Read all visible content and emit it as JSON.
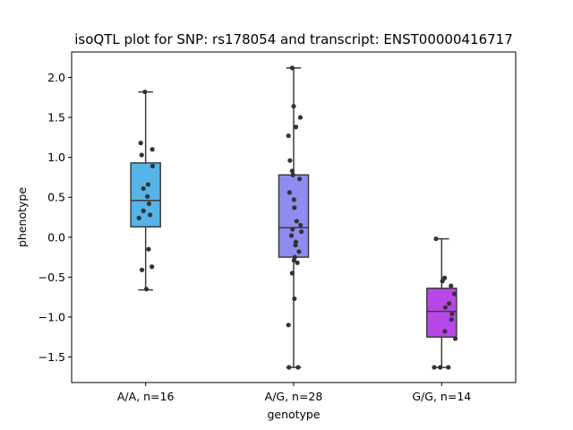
{
  "chart_data": {
    "type": "box",
    "title": "isoQTL plot for SNP: rs178054 and transcript: ENST00000416717",
    "xlabel": "genotype",
    "ylabel": "phenotype",
    "ylim": [
      -1.82,
      2.32
    ],
    "yticks": [
      2.0,
      1.5,
      1.0,
      0.5,
      0.0,
      -0.5,
      -1.0,
      -1.5
    ],
    "ytick_labels": [
      "2.0",
      "1.5",
      "1.0",
      "0.5",
      "0.0",
      "−0.5",
      "−1.0",
      "−1.5"
    ],
    "grid": false,
    "categories": [
      "A/A, n=16",
      "A/G, n=28",
      "G/G, n=14"
    ],
    "boxes": [
      {
        "category": "A/A, n=16",
        "color": "#56b4e9",
        "whisker_low": -0.66,
        "q1": 0.13,
        "median": 0.46,
        "q3": 0.93,
        "whisker_high": 1.82,
        "points": [
          {
            "offset": -0.05,
            "y": 1.82
          },
          {
            "offset": -0.33,
            "y": 1.18
          },
          {
            "offset": 0.45,
            "y": 1.1
          },
          {
            "offset": -0.27,
            "y": 1.03
          },
          {
            "offset": 0.47,
            "y": 0.89
          },
          {
            "offset": 0.17,
            "y": 0.66
          },
          {
            "offset": -0.15,
            "y": 0.61
          },
          {
            "offset": 0.12,
            "y": 0.51
          },
          {
            "offset": 0.23,
            "y": 0.42
          },
          {
            "offset": -0.15,
            "y": 0.33
          },
          {
            "offset": 0.3,
            "y": 0.28
          },
          {
            "offset": -0.45,
            "y": 0.24
          },
          {
            "offset": 0.2,
            "y": -0.15
          },
          {
            "offset": 0.42,
            "y": -0.37
          },
          {
            "offset": -0.25,
            "y": -0.41
          },
          {
            "offset": 0.05,
            "y": -0.65
          }
        ]
      },
      {
        "category": "A/G, n=28",
        "color": "#8f8cf0",
        "whisker_low": -1.63,
        "q1": -0.25,
        "median": 0.12,
        "q3": 0.78,
        "whisker_high": 2.12,
        "points": [
          {
            "offset": -0.1,
            "y": 2.12
          },
          {
            "offset": 0.0,
            "y": 1.64
          },
          {
            "offset": 0.45,
            "y": 1.5
          },
          {
            "offset": 0.15,
            "y": 1.38
          },
          {
            "offset": -0.35,
            "y": 1.27
          },
          {
            "offset": -0.25,
            "y": 0.96
          },
          {
            "offset": -0.1,
            "y": 0.83
          },
          {
            "offset": -0.05,
            "y": 0.78
          },
          {
            "offset": 0.4,
            "y": 0.73
          },
          {
            "offset": -0.28,
            "y": 0.56
          },
          {
            "offset": 0.02,
            "y": 0.47
          },
          {
            "offset": 0.05,
            "y": 0.37
          },
          {
            "offset": 0.2,
            "y": 0.2
          },
          {
            "offset": 0.47,
            "y": 0.15
          },
          {
            "offset": -0.08,
            "y": 0.1
          },
          {
            "offset": 0.52,
            "y": 0.07
          },
          {
            "offset": -0.15,
            "y": 0.02
          },
          {
            "offset": 0.15,
            "y": -0.06
          },
          {
            "offset": 0.12,
            "y": -0.1
          },
          {
            "offset": 0.36,
            "y": -0.18
          },
          {
            "offset": 0.08,
            "y": -0.25
          },
          {
            "offset": 0.02,
            "y": -0.29
          },
          {
            "offset": 0.25,
            "y": -0.32
          },
          {
            "offset": -0.1,
            "y": -0.45
          },
          {
            "offset": 0.05,
            "y": -0.77
          },
          {
            "offset": -0.35,
            "y": -1.1
          },
          {
            "offset": -0.32,
            "y": -1.63
          },
          {
            "offset": 0.3,
            "y": -1.63
          }
        ]
      },
      {
        "category": "G/G, n=14",
        "color": "#b847e8",
        "whisker_low": -1.63,
        "q1": -1.25,
        "median": -0.93,
        "q3": -0.64,
        "whisker_high": -0.02,
        "points": [
          {
            "offset": -0.38,
            "y": -0.02
          },
          {
            "offset": 0.2,
            "y": -0.51
          },
          {
            "offset": 0.05,
            "y": -0.55
          },
          {
            "offset": 0.63,
            "y": -0.61
          },
          {
            "offset": 0.85,
            "y": -0.71
          },
          {
            "offset": 0.5,
            "y": -0.83
          },
          {
            "offset": 0.25,
            "y": -0.88
          },
          {
            "offset": 0.7,
            "y": -0.96
          },
          {
            "offset": 0.66,
            "y": -1.03
          },
          {
            "offset": 0.22,
            "y": -1.18
          },
          {
            "offset": 0.92,
            "y": -1.27
          },
          {
            "offset": -0.5,
            "y": -1.63
          },
          {
            "offset": -0.1,
            "y": -1.63
          },
          {
            "offset": 0.45,
            "y": -1.63
          }
        ]
      }
    ]
  }
}
